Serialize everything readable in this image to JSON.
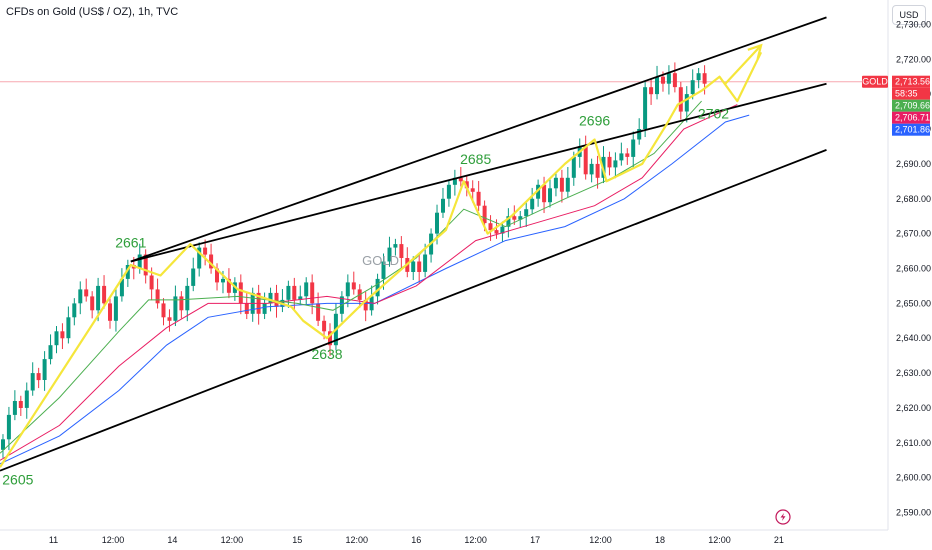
{
  "header": {
    "title": "CFDs on Gold (US$ / OZ), 1h, TVC",
    "currency_button": "USD"
  },
  "colors": {
    "up": "#089981",
    "down": "#f23645",
    "zigzag": "#f5e63b",
    "channel": "#000000",
    "ma_fast": "#4caf50",
    "ma_mid": "#e91e63",
    "ma_slow": "#2962ff"
  },
  "chart_data": {
    "type": "candlestick",
    "ylim": [
      2585,
      2737
    ],
    "xlim": [
      0,
      148
    ],
    "y_ticks": [
      "2,590.00",
      "2,600.00",
      "2,610.00",
      "2,620.00",
      "2,630.00",
      "2,640.00",
      "2,650.00",
      "2,660.00",
      "2,670.00",
      "2,680.00",
      "2,690.00",
      "2,700.00",
      "2,710.00",
      "2,720.00",
      "2,730.00"
    ],
    "y_tick_values": [
      2590,
      2600,
      2610,
      2620,
      2630,
      2640,
      2650,
      2660,
      2670,
      2680,
      2690,
      2700,
      2710,
      2720,
      2730
    ],
    "x_ticks": [
      {
        "label": "11",
        "x": 9
      },
      {
        "label": "12:00",
        "x": 19
      },
      {
        "label": "14",
        "x": 29
      },
      {
        "label": "12:00",
        "x": 39
      },
      {
        "label": "15",
        "x": 50
      },
      {
        "label": "12:00",
        "x": 60
      },
      {
        "label": "16",
        "x": 70
      },
      {
        "label": "12:00",
        "x": 80
      },
      {
        "label": "17",
        "x": 90
      },
      {
        "label": "12:00",
        "x": 101
      },
      {
        "label": "18",
        "x": 111
      },
      {
        "label": "12:00",
        "x": 121
      },
      {
        "label": "21",
        "x": 131
      }
    ],
    "closes": [
      2611,
      2618,
      2622,
      2620,
      2625,
      2630,
      2628,
      2634,
      2638,
      2642,
      2640,
      2646,
      2650,
      2654,
      2652,
      2648,
      2655,
      2650,
      2645,
      2652,
      2657,
      2661,
      2660,
      2664,
      2658,
      2654,
      2650,
      2646,
      2645,
      2652,
      2648,
      2655,
      2660,
      2666,
      2664,
      2660,
      2656,
      2657,
      2653,
      2656,
      2650,
      2647,
      2653,
      2647,
      2650,
      2653,
      2649,
      2651,
      2655,
      2651,
      2652,
      2656,
      2650,
      2645,
      2642,
      2638,
      2647,
      2652,
      2656,
      2654,
      2651,
      2648,
      2652,
      2657,
      2662,
      2666,
      2667,
      2663,
      2659,
      2662,
      2659,
      2664,
      2670,
      2676,
      2680,
      2684,
      2686,
      2685,
      2683,
      2682,
      2678,
      2673,
      2671,
      2670,
      2672,
      2675,
      2674,
      2675,
      2677,
      2680,
      2684,
      2679,
      2683,
      2686,
      2682,
      2686,
      2692,
      2695,
      2687,
      2690,
      2686,
      2692,
      2689,
      2691,
      2693,
      2692,
      2697,
      2700,
      2712,
      2710,
      2715,
      2713,
      2716,
      2712,
      2705,
      2710,
      2714,
      2716,
      2713
    ],
    "ma_fast": [
      [
        0,
        2607
      ],
      [
        10,
        2623
      ],
      [
        20,
        2642
      ],
      [
        25,
        2651
      ],
      [
        30,
        2651
      ],
      [
        40,
        2652
      ],
      [
        50,
        2650
      ],
      [
        56,
        2648
      ],
      [
        63,
        2655
      ],
      [
        70,
        2663
      ],
      [
        78,
        2677
      ],
      [
        85,
        2672
      ],
      [
        95,
        2680
      ],
      [
        103,
        2686
      ],
      [
        110,
        2693
      ],
      [
        118,
        2708
      ]
    ],
    "ma_mid": [
      [
        0,
        2605
      ],
      [
        10,
        2615
      ],
      [
        20,
        2632
      ],
      [
        28,
        2643
      ],
      [
        35,
        2650
      ],
      [
        45,
        2650
      ],
      [
        55,
        2652
      ],
      [
        63,
        2650
      ],
      [
        70,
        2655
      ],
      [
        80,
        2668
      ],
      [
        90,
        2673
      ],
      [
        100,
        2678
      ],
      [
        108,
        2686
      ],
      [
        115,
        2700
      ],
      [
        124,
        2707
      ]
    ],
    "ma_slow": [
      [
        0,
        2604
      ],
      [
        10,
        2612
      ],
      [
        20,
        2625
      ],
      [
        28,
        2638
      ],
      [
        35,
        2646
      ],
      [
        45,
        2649
      ],
      [
        55,
        2650
      ],
      [
        63,
        2650
      ],
      [
        75,
        2660
      ],
      [
        85,
        2668
      ],
      [
        95,
        2672
      ],
      [
        105,
        2680
      ],
      [
        113,
        2690
      ],
      [
        122,
        2702
      ],
      [
        126,
        2704
      ]
    ],
    "zigzag": [
      [
        0,
        2603
      ],
      [
        22,
        2661
      ],
      [
        27,
        2658
      ],
      [
        32,
        2667
      ],
      [
        40,
        2654
      ],
      [
        49,
        2649
      ],
      [
        51,
        2645
      ],
      [
        55,
        2640
      ],
      [
        61,
        2650
      ],
      [
        75,
        2671
      ],
      [
        78,
        2685
      ],
      [
        82,
        2670
      ],
      [
        86,
        2675
      ],
      [
        95,
        2690
      ],
      [
        100,
        2697
      ],
      [
        102,
        2685
      ],
      [
        108,
        2690
      ],
      [
        112,
        2701
      ],
      [
        114,
        2707
      ],
      [
        118,
        2711
      ],
      [
        121,
        2715
      ],
      [
        124,
        2708
      ],
      [
        128,
        2722
      ]
    ],
    "zigzag_arrow": [
      [
        122,
        2713
      ],
      [
        128,
        2724
      ]
    ],
    "channel_upper": [
      [
        22,
        2662
      ],
      [
        139,
        2732
      ]
    ],
    "channel_mid": [
      [
        22,
        2662
      ],
      [
        139,
        2713
      ]
    ],
    "channel_lower": [
      [
        0,
        2602
      ],
      [
        139,
        2694
      ]
    ],
    "labels": [
      {
        "text": "2605",
        "x": 3,
        "y": 2598
      },
      {
        "text": "2661",
        "x": 22,
        "y": 2666
      },
      {
        "text": "2638",
        "x": 55,
        "y": 2634
      },
      {
        "text": "2685",
        "x": 80,
        "y": 2690
      },
      {
        "text": "2696",
        "x": 100,
        "y": 2701
      },
      {
        "text": "2702",
        "x": 120,
        "y": 2703
      }
    ],
    "symbol_watermark": "GOLD",
    "price_tags": [
      {
        "text": "GOLD",
        "value": 2713.56,
        "color": "#f23645",
        "side": "left"
      },
      {
        "text": "2,713.56",
        "value": 2713.56,
        "color": "#f23645"
      },
      {
        "text": "58:35",
        "value": 2711.0,
        "color": "#f23645"
      },
      {
        "text": "2,709.66",
        "value": 2709.66,
        "color": "#4caf50"
      },
      {
        "text": "2,706.71",
        "value": 2706.71,
        "color": "#e91e63"
      },
      {
        "text": "2,701.86",
        "value": 2701.86,
        "color": "#2962ff"
      }
    ],
    "current_price": 2713.56
  }
}
